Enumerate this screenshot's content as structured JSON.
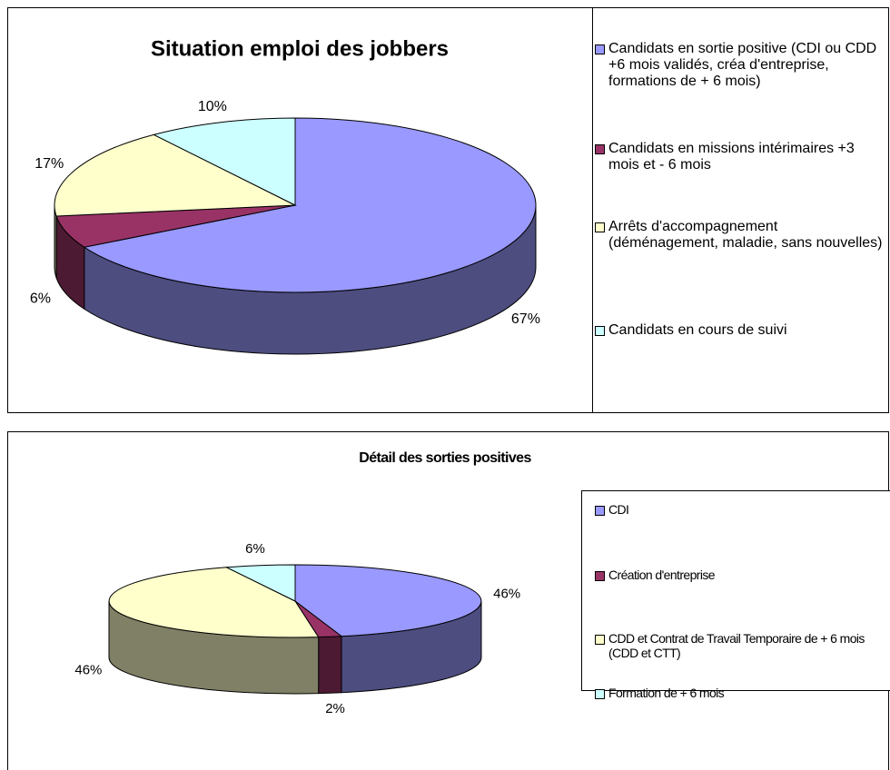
{
  "chart_data": [
    {
      "type": "pie3d",
      "title": "Situation emploi des jobbers",
      "categories": [
        "Candidats en sortie positive (CDI ou CDD +6 mois validés, créa d'entreprise, formations de + 6 mois)",
        "Candidats en missions intérimaires +3 mois et - 6 mois",
        "Arrêts d'accompagnement (déménagement, maladie, sans nouvelles)",
        "Candidats en cours de suivi"
      ],
      "values": [
        67,
        6,
        17,
        10
      ],
      "value_labels": [
        "67%",
        "6%",
        "17%",
        "10%"
      ],
      "colors": [
        "#9999ff",
        "#993366",
        "#ffffcc",
        "#ccffff"
      ]
    },
    {
      "type": "pie3d",
      "title": "Détail des sorties positives",
      "categories": [
        "CDI",
        "Création d'entreprise",
        "CDD et Contrat de Travail Temporaire de + 6 mois (CDD et CTT)",
        "Formation de + 6 mois"
      ],
      "values": [
        46,
        2,
        46,
        6
      ],
      "value_labels": [
        "46%",
        "2%",
        "46%",
        "6%"
      ],
      "colors": [
        "#9999ff",
        "#993366",
        "#ffffcc",
        "#ccffff"
      ]
    }
  ]
}
